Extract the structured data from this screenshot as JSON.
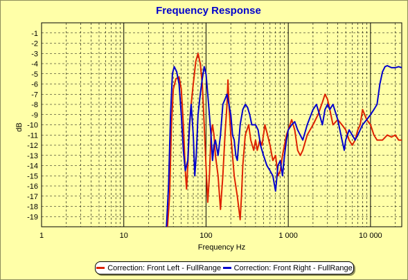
{
  "chart_data": {
    "type": "line",
    "title": "Frequency Response",
    "xlabel": "Frequency Hz",
    "ylabel": "dB",
    "x_scale": "log",
    "xlim": [
      1,
      24000
    ],
    "ylim": [
      -20,
      0
    ],
    "grid": true,
    "x_major_ticks": [
      {
        "value": 1,
        "label": "1"
      },
      {
        "value": 10,
        "label": "10"
      },
      {
        "value": 100,
        "label": "100"
      },
      {
        "value": 1000,
        "label": "1 000"
      },
      {
        "value": 10000,
        "label": "10 000"
      }
    ],
    "y_ticks": [
      -1,
      -2,
      -3,
      -4,
      -5,
      -6,
      -7,
      -8,
      -9,
      -10,
      -11,
      -12,
      -13,
      -14,
      -15,
      -16,
      -17,
      -18,
      -19
    ],
    "legend_position": "bottom",
    "colors": {
      "background": "#ffffa8",
      "title": "#0000cc",
      "grid": "#000000"
    },
    "series": [
      {
        "name": "Correction: Front Left - FullRange",
        "color": "#dd2200",
        "points": [
          [
            34,
            -20
          ],
          [
            36,
            -17
          ],
          [
            38,
            -10
          ],
          [
            40,
            -6.5
          ],
          [
            43,
            -5.5
          ],
          [
            47,
            -5.3
          ],
          [
            50,
            -6.5
          ],
          [
            53,
            -10
          ],
          [
            56,
            -14.5
          ],
          [
            58,
            -16.3
          ],
          [
            60,
            -14
          ],
          [
            62,
            -11
          ],
          [
            65,
            -8.5
          ],
          [
            70,
            -6
          ],
          [
            75,
            -3.8
          ],
          [
            80,
            -3
          ],
          [
            85,
            -4
          ],
          [
            90,
            -6
          ],
          [
            95,
            -10
          ],
          [
            100,
            -14
          ],
          [
            105,
            -17.6
          ],
          [
            110,
            -15
          ],
          [
            115,
            -11
          ],
          [
            120,
            -10
          ],
          [
            125,
            -11
          ],
          [
            130,
            -13
          ],
          [
            140,
            -15
          ],
          [
            150,
            -18.3
          ],
          [
            160,
            -15
          ],
          [
            170,
            -11
          ],
          [
            180,
            -8
          ],
          [
            185,
            -5.6
          ],
          [
            190,
            -8
          ],
          [
            200,
            -11
          ],
          [
            220,
            -15
          ],
          [
            240,
            -17
          ],
          [
            260,
            -19.3
          ],
          [
            270,
            -17
          ],
          [
            280,
            -14
          ],
          [
            300,
            -11
          ],
          [
            330,
            -10
          ],
          [
            350,
            -11.5
          ],
          [
            380,
            -12.5
          ],
          [
            400,
            -11.5
          ],
          [
            420,
            -12.5
          ],
          [
            450,
            -11.5
          ],
          [
            480,
            -12
          ],
          [
            520,
            -10
          ],
          [
            560,
            -11
          ],
          [
            600,
            -12
          ],
          [
            650,
            -13.5
          ],
          [
            700,
            -13
          ],
          [
            750,
            -15
          ],
          [
            800,
            -14.5
          ],
          [
            850,
            -13
          ],
          [
            900,
            -12
          ],
          [
            950,
            -11
          ],
          [
            1000,
            -10.5
          ],
          [
            1100,
            -9.5
          ],
          [
            1200,
            -10.5
          ],
          [
            1300,
            -12.5
          ],
          [
            1400,
            -13
          ],
          [
            1500,
            -12.5
          ],
          [
            1700,
            -11
          ],
          [
            2000,
            -10
          ],
          [
            2300,
            -9
          ],
          [
            2600,
            -7.8
          ],
          [
            2800,
            -7
          ],
          [
            3000,
            -7.5
          ],
          [
            3200,
            -8.5
          ],
          [
            3500,
            -10
          ],
          [
            4000,
            -9.5
          ],
          [
            4500,
            -10
          ],
          [
            5000,
            -10.5
          ],
          [
            5500,
            -11.5
          ],
          [
            6000,
            -12
          ],
          [
            6500,
            -11.5
          ],
          [
            7000,
            -10.5
          ],
          [
            7500,
            -10
          ],
          [
            8000,
            -8.5
          ],
          [
            9000,
            -9.5
          ],
          [
            10000,
            -10
          ],
          [
            11000,
            -11
          ],
          [
            12000,
            -11.5
          ],
          [
            14000,
            -11.5
          ],
          [
            16000,
            -11
          ],
          [
            18000,
            -11.2
          ],
          [
            20000,
            -11
          ],
          [
            22000,
            -11.5
          ],
          [
            24000,
            -11.5
          ]
        ]
      },
      {
        "name": "Correction: Front Right - FullRange",
        "color": "#0000cc",
        "points": [
          [
            33,
            -20
          ],
          [
            35,
            -16
          ],
          [
            37,
            -9
          ],
          [
            39,
            -5
          ],
          [
            41,
            -4.3
          ],
          [
            44,
            -4.8
          ],
          [
            47,
            -6
          ],
          [
            50,
            -9
          ],
          [
            53,
            -12.5
          ],
          [
            56,
            -14.5
          ],
          [
            60,
            -13.5
          ],
          [
            63,
            -10
          ],
          [
            66,
            -8
          ],
          [
            70,
            -11
          ],
          [
            73,
            -15
          ],
          [
            76,
            -13
          ],
          [
            80,
            -9
          ],
          [
            85,
            -7
          ],
          [
            90,
            -5.5
          ],
          [
            95,
            -4.3
          ],
          [
            100,
            -5
          ],
          [
            105,
            -7
          ],
          [
            110,
            -9
          ],
          [
            115,
            -11
          ],
          [
            120,
            -13.5
          ],
          [
            125,
            -12
          ],
          [
            130,
            -11.5
          ],
          [
            140,
            -13
          ],
          [
            150,
            -11
          ],
          [
            160,
            -8
          ],
          [
            170,
            -7.5
          ],
          [
            180,
            -7
          ],
          [
            190,
            -8
          ],
          [
            200,
            -9
          ],
          [
            210,
            -11
          ],
          [
            220,
            -11.5
          ],
          [
            230,
            -13
          ],
          [
            240,
            -13.5
          ],
          [
            260,
            -10
          ],
          [
            280,
            -8.5
          ],
          [
            300,
            -8
          ],
          [
            320,
            -8.3
          ],
          [
            340,
            -9
          ],
          [
            360,
            -10
          ],
          [
            400,
            -10
          ],
          [
            430,
            -10.5
          ],
          [
            460,
            -12
          ],
          [
            500,
            -13
          ],
          [
            550,
            -14
          ],
          [
            600,
            -14.5
          ],
          [
            650,
            -15
          ],
          [
            700,
            -16.5
          ],
          [
            750,
            -14
          ],
          [
            800,
            -13.5
          ],
          [
            850,
            -15
          ],
          [
            900,
            -13
          ],
          [
            950,
            -11.5
          ],
          [
            1000,
            -10.5
          ],
          [
            1100,
            -10
          ],
          [
            1200,
            -9.7
          ],
          [
            1300,
            -10.5
          ],
          [
            1500,
            -11.5
          ],
          [
            1700,
            -10
          ],
          [
            2000,
            -8.5
          ],
          [
            2200,
            -8
          ],
          [
            2400,
            -9
          ],
          [
            2600,
            -10
          ],
          [
            2800,
            -8.5
          ],
          [
            3000,
            -8
          ],
          [
            3200,
            -8.5
          ],
          [
            3500,
            -8
          ],
          [
            4000,
            -9.5
          ],
          [
            4500,
            -11.5
          ],
          [
            4800,
            -12.5
          ],
          [
            5000,
            -11.5
          ],
          [
            5500,
            -10.5
          ],
          [
            6000,
            -11
          ],
          [
            6500,
            -11.5
          ],
          [
            7000,
            -11
          ],
          [
            8000,
            -10
          ],
          [
            9000,
            -9.5
          ],
          [
            10000,
            -9
          ],
          [
            11000,
            -8.5
          ],
          [
            12000,
            -8
          ],
          [
            13000,
            -6
          ],
          [
            14000,
            -4.8
          ],
          [
            15000,
            -4.3
          ],
          [
            16000,
            -4.2
          ],
          [
            18000,
            -4.4
          ],
          [
            20000,
            -4.4
          ],
          [
            22000,
            -4.3
          ],
          [
            24000,
            -4.4
          ]
        ]
      }
    ]
  }
}
